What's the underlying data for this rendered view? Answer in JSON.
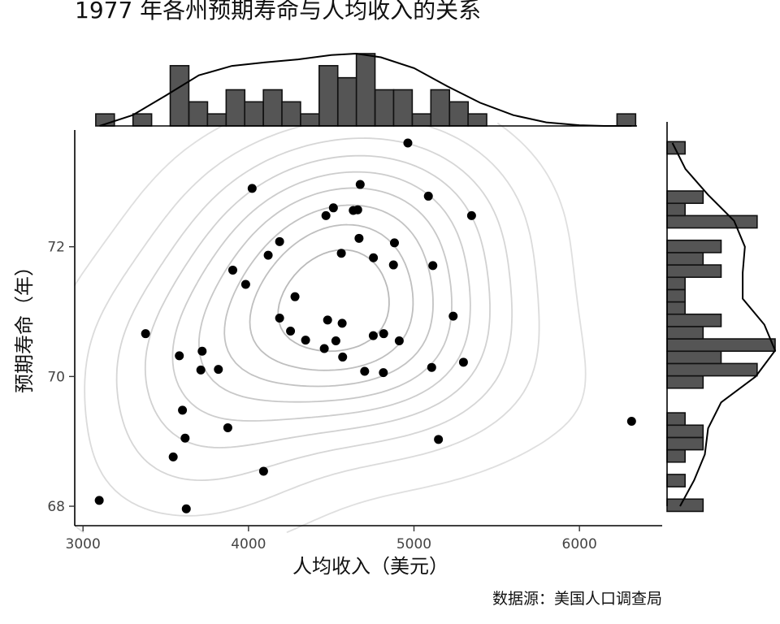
{
  "chart_data": {
    "type": "scatter",
    "title": "1977 年各州预期寿命与人均收入的关系",
    "xlabel": "人均收入（美元）",
    "ylabel": "预期寿命（年）",
    "caption": "数据源：美国人口调查局",
    "xlim": [
      2950,
      6500
    ],
    "ylim": [
      67.7,
      73.8
    ],
    "xticks": [
      {
        "value": 3000,
        "label": "3000"
      },
      {
        "value": 4000,
        "label": "4000"
      },
      {
        "value": 5000,
        "label": "5000"
      },
      {
        "value": 6000,
        "label": "6000"
      }
    ],
    "yticks": [
      {
        "value": 68,
        "label": "68"
      },
      {
        "value": 70,
        "label": "70"
      },
      {
        "value": 72,
        "label": "72"
      }
    ],
    "grid": false,
    "points": [
      {
        "x": 3098,
        "y": 68.09
      },
      {
        "x": 3624,
        "y": 67.96
      },
      {
        "x": 4091,
        "y": 68.54
      },
      {
        "x": 3545,
        "y": 68.76
      },
      {
        "x": 3617,
        "y": 69.05
      },
      {
        "x": 3601,
        "y": 69.48
      },
      {
        "x": 3875,
        "y": 69.21
      },
      {
        "x": 5148,
        "y": 69.03
      },
      {
        "x": 6315,
        "y": 69.31
      },
      {
        "x": 3378,
        "y": 70.66
      },
      {
        "x": 3720,
        "y": 70.39
      },
      {
        "x": 3582,
        "y": 70.32
      },
      {
        "x": 3712,
        "y": 70.1
      },
      {
        "x": 3818,
        "y": 70.11
      },
      {
        "x": 4188,
        "y": 70.9
      },
      {
        "x": 4254,
        "y": 70.7
      },
      {
        "x": 4345,
        "y": 70.56
      },
      {
        "x": 4458,
        "y": 70.43
      },
      {
        "x": 4528,
        "y": 70.55
      },
      {
        "x": 4566,
        "y": 70.82
      },
      {
        "x": 4569,
        "y": 70.3
      },
      {
        "x": 4702,
        "y": 70.08
      },
      {
        "x": 4815,
        "y": 70.06
      },
      {
        "x": 4478,
        "y": 70.87
      },
      {
        "x": 4754,
        "y": 70.63
      },
      {
        "x": 4817,
        "y": 70.66
      },
      {
        "x": 4911,
        "y": 70.55
      },
      {
        "x": 5107,
        "y": 70.14
      },
      {
        "x": 5299,
        "y": 70.22
      },
      {
        "x": 5237,
        "y": 70.93
      },
      {
        "x": 4281,
        "y": 71.23
      },
      {
        "x": 3983,
        "y": 71.42
      },
      {
        "x": 3905,
        "y": 71.64
      },
      {
        "x": 4119,
        "y": 71.87
      },
      {
        "x": 4188,
        "y": 72.08
      },
      {
        "x": 4561,
        "y": 71.9
      },
      {
        "x": 4755,
        "y": 71.83
      },
      {
        "x": 4668,
        "y": 72.13
      },
      {
        "x": 4876,
        "y": 71.72
      },
      {
        "x": 4882,
        "y": 72.06
      },
      {
        "x": 5114,
        "y": 71.71
      },
      {
        "x": 4468,
        "y": 72.48
      },
      {
        "x": 4513,
        "y": 72.6
      },
      {
        "x": 4633,
        "y": 72.56
      },
      {
        "x": 4660,
        "y": 72.57
      },
      {
        "x": 4675,
        "y": 72.96
      },
      {
        "x": 5087,
        "y": 72.78
      },
      {
        "x": 5348,
        "y": 72.48
      },
      {
        "x": 4022,
        "y": 72.9
      },
      {
        "x": 4963,
        "y": 73.6
      }
    ],
    "contour_levels": 9,
    "marginal_x_hist": {
      "binwidth": 112.5,
      "bins": [
        {
          "start": 3077,
          "count": 1
        },
        {
          "start": 3302,
          "count": 1
        },
        {
          "start": 3527,
          "count": 5
        },
        {
          "start": 3640,
          "count": 2
        },
        {
          "start": 3752,
          "count": 1
        },
        {
          "start": 3865,
          "count": 3
        },
        {
          "start": 3977,
          "count": 2
        },
        {
          "start": 4090,
          "count": 3
        },
        {
          "start": 4202,
          "count": 2
        },
        {
          "start": 4315,
          "count": 1
        },
        {
          "start": 4427,
          "count": 5
        },
        {
          "start": 4540,
          "count": 4
        },
        {
          "start": 4652,
          "count": 6
        },
        {
          "start": 4765,
          "count": 3
        },
        {
          "start": 4877,
          "count": 3
        },
        {
          "start": 4990,
          "count": 1
        },
        {
          "start": 5102,
          "count": 3
        },
        {
          "start": 5215,
          "count": 2
        },
        {
          "start": 5327,
          "count": 1
        },
        {
          "start": 6227,
          "count": 1
        }
      ]
    },
    "marginal_y_hist": {
      "binwidth": 0.19,
      "bins": [
        {
          "start": 67.92,
          "count": 2
        },
        {
          "start": 68.3,
          "count": 1
        },
        {
          "start": 68.68,
          "count": 1
        },
        {
          "start": 68.87,
          "count": 2
        },
        {
          "start": 69.06,
          "count": 2
        },
        {
          "start": 69.25,
          "count": 1
        },
        {
          "start": 69.82,
          "count": 2
        },
        {
          "start": 70.01,
          "count": 5
        },
        {
          "start": 70.2,
          "count": 3
        },
        {
          "start": 70.39,
          "count": 6
        },
        {
          "start": 70.58,
          "count": 2
        },
        {
          "start": 70.77,
          "count": 3
        },
        {
          "start": 70.96,
          "count": 1
        },
        {
          "start": 71.15,
          "count": 1
        },
        {
          "start": 71.34,
          "count": 1
        },
        {
          "start": 71.53,
          "count": 3
        },
        {
          "start": 71.72,
          "count": 2
        },
        {
          "start": 71.91,
          "count": 3
        },
        {
          "start": 72.29,
          "count": 5
        },
        {
          "start": 72.48,
          "count": 1
        },
        {
          "start": 72.67,
          "count": 2
        },
        {
          "start": 73.43,
          "count": 1
        }
      ]
    },
    "marginal_x_density": [
      {
        "x": 3100,
        "d": 0.0
      },
      {
        "x": 3300,
        "d": 0.15
      },
      {
        "x": 3500,
        "d": 0.42
      },
      {
        "x": 3700,
        "d": 0.7
      },
      {
        "x": 3900,
        "d": 0.83
      },
      {
        "x": 4100,
        "d": 0.88
      },
      {
        "x": 4300,
        "d": 0.92
      },
      {
        "x": 4500,
        "d": 0.98
      },
      {
        "x": 4650,
        "d": 1.0
      },
      {
        "x": 4800,
        "d": 0.95
      },
      {
        "x": 5000,
        "d": 0.8
      },
      {
        "x": 5200,
        "d": 0.55
      },
      {
        "x": 5400,
        "d": 0.32
      },
      {
        "x": 5600,
        "d": 0.15
      },
      {
        "x": 5800,
        "d": 0.05
      },
      {
        "x": 6000,
        "d": 0.01
      },
      {
        "x": 6150,
        "d": 0.0
      },
      {
        "x": 6315,
        "d": 0.0
      }
    ],
    "marginal_y_density": [
      {
        "y": 68.0,
        "d": 0.12
      },
      {
        "y": 68.4,
        "d": 0.25
      },
      {
        "y": 68.8,
        "d": 0.35
      },
      {
        "y": 69.2,
        "d": 0.38
      },
      {
        "y": 69.6,
        "d": 0.5
      },
      {
        "y": 70.0,
        "d": 0.82
      },
      {
        "y": 70.4,
        "d": 1.0
      },
      {
        "y": 70.8,
        "d": 0.9
      },
      {
        "y": 71.2,
        "d": 0.7
      },
      {
        "y": 71.6,
        "d": 0.7
      },
      {
        "y": 72.0,
        "d": 0.72
      },
      {
        "y": 72.4,
        "d": 0.62
      },
      {
        "y": 72.8,
        "d": 0.38
      },
      {
        "y": 73.2,
        "d": 0.17
      },
      {
        "y": 73.6,
        "d": 0.05
      }
    ]
  }
}
